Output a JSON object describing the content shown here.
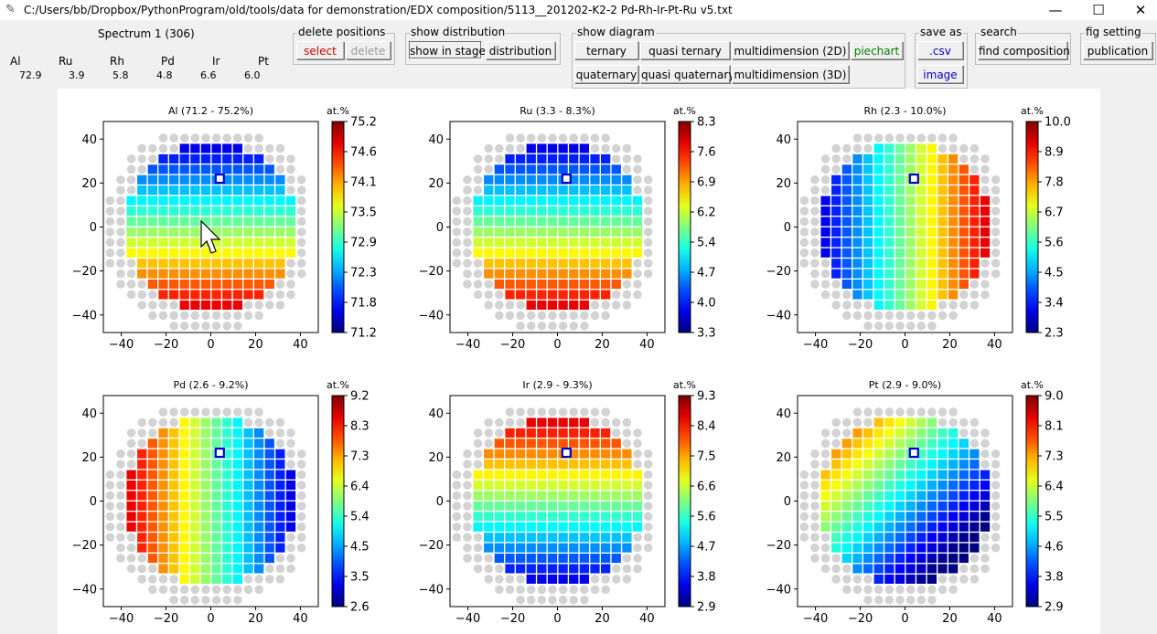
{
  "window": {
    "title": "C:/Users/bb/Dropbox/PythonProgram/old/tools/data for demonstration/EDX composition/5113__201202-K2-2 Pd-Rh-Ir-Pt-Ru v5.txt",
    "minimize": "—",
    "maximize": "☐",
    "close": "✕"
  },
  "spectrum": {
    "title": "Spectrum 1 (306)",
    "elements": [
      {
        "name": "Al",
        "value": "72.9"
      },
      {
        "name": "Ru",
        "value": "3.9"
      },
      {
        "name": "Rh",
        "value": "5.8"
      },
      {
        "name": "Pd",
        "value": "4.8"
      },
      {
        "name": "Ir",
        "value": "6.6"
      },
      {
        "name": "Pt",
        "value": "6.0"
      }
    ]
  },
  "toolbar": {
    "delete_positions": {
      "title": "delete positions",
      "select": "select",
      "delete": "delete"
    },
    "show_distribution": {
      "title": "show distribution",
      "show_in_stage": "show in stage",
      "distribution": "distribution"
    },
    "show_diagram": {
      "title": "show diagram",
      "ternary": "ternary",
      "quasi_ternary": "quasi ternary",
      "multidimension_2d": "multidimension (2D)",
      "piechart": "piechart",
      "quaternary": "quaternary",
      "quasi_quaternary": "quasi quaternary",
      "multidimension_3d": "multidimension (3D)"
    },
    "save_as": {
      "title": "save as",
      "csv": ".csv",
      "image": "image"
    },
    "search": {
      "title": "search",
      "find_composition": "find composition"
    },
    "fig_setting": {
      "title": "fig setting",
      "publication": "publication"
    }
  },
  "chart_data": [
    {
      "type": "heatmap",
      "title": "Al (71.2 - 75.2%)",
      "element": "Al",
      "gradient": "tb",
      "min": 71.2,
      "max": 75.2,
      "cbar_ticks": [
        "75.2",
        "74.6",
        "74.1",
        "73.5",
        "72.9",
        "72.3",
        "71.8",
        "71.2"
      ],
      "unit": "at.%",
      "x_ticks": [
        -40,
        -20,
        0,
        20,
        40
      ],
      "y_ticks": [
        40,
        20,
        0,
        -20,
        -40
      ],
      "xlim": [
        -48,
        48
      ],
      "ylim": [
        -48,
        48
      ]
    },
    {
      "type": "heatmap",
      "title": "Ru (3.3 - 8.3%)",
      "element": "Ru",
      "gradient": "tb",
      "min": 3.3,
      "max": 8.3,
      "cbar_ticks": [
        "8.3",
        "7.6",
        "6.9",
        "6.2",
        "5.4",
        "4.7",
        "4.0",
        "3.3"
      ],
      "unit": "at.%",
      "x_ticks": [
        -40,
        -20,
        0,
        20,
        40
      ],
      "y_ticks": [
        40,
        20,
        0,
        -20,
        -40
      ],
      "xlim": [
        -48,
        48
      ],
      "ylim": [
        -48,
        48
      ]
    },
    {
      "type": "heatmap",
      "title": "Rh (2.3 - 10.0%)",
      "element": "Rh",
      "gradient": "lr",
      "min": 2.3,
      "max": 10.0,
      "cbar_ticks": [
        "10.0",
        "8.9",
        "7.8",
        "6.7",
        "5.6",
        "4.5",
        "3.4",
        "2.3"
      ],
      "unit": "at.%",
      "x_ticks": [
        -40,
        -20,
        0,
        20,
        40
      ],
      "y_ticks": [
        40,
        20,
        0,
        -20,
        -40
      ],
      "xlim": [
        -48,
        48
      ],
      "ylim": [
        -48,
        48
      ]
    },
    {
      "type": "heatmap",
      "title": "Pd (2.6 - 9.2%)",
      "element": "Pd",
      "gradient": "rl",
      "min": 2.6,
      "max": 9.2,
      "cbar_ticks": [
        "9.2",
        "8.3",
        "7.3",
        "6.4",
        "5.4",
        "4.5",
        "3.5",
        "2.6"
      ],
      "unit": "at.%",
      "x_ticks": [
        -40,
        -20,
        0,
        20,
        40
      ],
      "y_ticks": [
        40,
        20,
        0,
        -20,
        -40
      ],
      "xlim": [
        -48,
        48
      ],
      "ylim": [
        -48,
        48
      ]
    },
    {
      "type": "heatmap",
      "title": "Ir (2.9 - 9.3%)",
      "element": "Ir",
      "gradient": "bt",
      "min": 2.9,
      "max": 9.3,
      "cbar_ticks": [
        "9.3",
        "8.4",
        "7.5",
        "6.6",
        "5.6",
        "4.7",
        "3.8",
        "2.9"
      ],
      "unit": "at.%",
      "x_ticks": [
        -40,
        -20,
        0,
        20,
        40
      ],
      "y_ticks": [
        40,
        20,
        0,
        -20,
        -40
      ],
      "xlim": [
        -48,
        48
      ],
      "ylim": [
        -48,
        48
      ]
    },
    {
      "type": "heatmap",
      "title": "Pt (2.9 - 9.0%)",
      "element": "Pt",
      "gradient": "diag",
      "min": 2.9,
      "max": 9.0,
      "cbar_ticks": [
        "9.0",
        "8.1",
        "7.3",
        "6.4",
        "5.5",
        "4.6",
        "3.8",
        "2.9"
      ],
      "unit": "at.%",
      "x_ticks": [
        -40,
        -20,
        0,
        20,
        40
      ],
      "y_ticks": [
        40,
        20,
        0,
        -20,
        -40
      ],
      "xlim": [
        -48,
        48
      ],
      "ylim": [
        -48,
        48
      ]
    }
  ],
  "selected_point": {
    "x": 4,
    "y": 22
  }
}
